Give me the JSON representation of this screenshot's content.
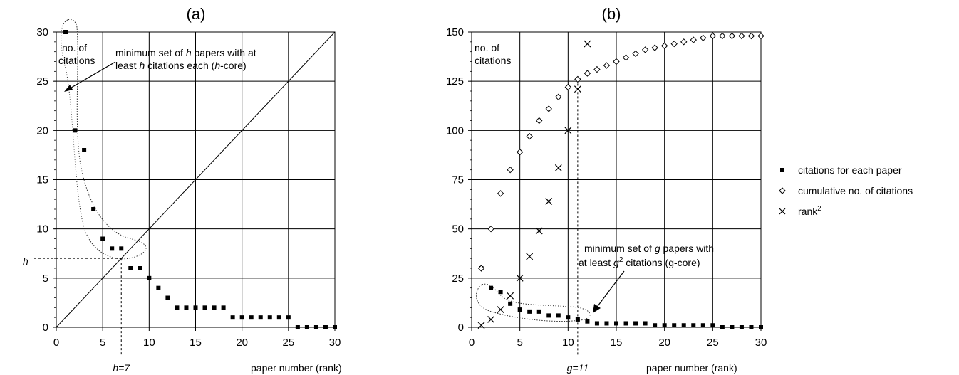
{
  "chart_data": [
    {
      "panel": "a",
      "type": "scatter",
      "title": "(a)",
      "ylabel_lines": [
        "no. of",
        "citations"
      ],
      "xlabel": "paper number (rank)",
      "xlim": [
        0,
        30
      ],
      "ylim": [
        0,
        30
      ],
      "xticks": [
        0,
        5,
        10,
        15,
        20,
        25,
        30
      ],
      "yticks": [
        0,
        5,
        10,
        15,
        20,
        25,
        30
      ],
      "grid": true,
      "series": [
        {
          "name": "citations for each paper",
          "marker": "filled-square",
          "x": [
            1,
            2,
            3,
            4,
            5,
            6,
            7,
            8,
            9,
            10,
            11,
            12,
            13,
            14,
            15,
            16,
            17,
            18,
            19,
            20,
            21,
            22,
            23,
            24,
            25,
            26,
            27,
            28,
            29,
            30
          ],
          "y": [
            30,
            20,
            18,
            12,
            9,
            8,
            8,
            6,
            6,
            5,
            4,
            3,
            2,
            2,
            2,
            2,
            2,
            2,
            1,
            1,
            1,
            1,
            1,
            1,
            1,
            0,
            0,
            0,
            0,
            0
          ]
        },
        {
          "name": "",
          "marker": "line",
          "x": [
            0,
            30
          ],
          "y": [
            0,
            30
          ]
        }
      ],
      "annotations": {
        "h_label": "h",
        "h_value_label": "h=7",
        "h_value": 7,
        "core_text_line1": [
          "minimum set of ",
          "h",
          " papers with at"
        ],
        "core_text_line2": [
          "least ",
          "h",
          " citations each (",
          "h",
          "-core)"
        ]
      }
    },
    {
      "panel": "b",
      "type": "scatter",
      "title": "(b)",
      "ylabel_lines": [
        "no. of",
        "citations"
      ],
      "xlabel": "paper number (rank)",
      "xlim": [
        0,
        30
      ],
      "ylim": [
        0,
        150
      ],
      "xticks": [
        0,
        5,
        10,
        15,
        20,
        25,
        30
      ],
      "yticks": [
        0,
        25,
        50,
        75,
        100,
        125,
        150
      ],
      "grid": true,
      "series": [
        {
          "name": "citations for each paper",
          "marker": "filled-square",
          "x": [
            1,
            2,
            3,
            4,
            5,
            6,
            7,
            8,
            9,
            10,
            11,
            12,
            13,
            14,
            15,
            16,
            17,
            18,
            19,
            20,
            21,
            22,
            23,
            24,
            25,
            26,
            27,
            28,
            29,
            30
          ],
          "y": [
            30,
            20,
            18,
            12,
            9,
            8,
            8,
            6,
            6,
            5,
            4,
            3,
            2,
            2,
            2,
            2,
            2,
            2,
            1,
            1,
            1,
            1,
            1,
            1,
            1,
            0,
            0,
            0,
            0,
            0
          ]
        },
        {
          "name": "cumulative no. of citations",
          "marker": "open-diamond",
          "x": [
            1,
            2,
            3,
            4,
            5,
            6,
            7,
            8,
            9,
            10,
            11,
            12,
            13,
            14,
            15,
            16,
            17,
            18,
            19,
            20,
            21,
            22,
            23,
            24,
            25,
            26,
            27,
            28,
            29,
            30
          ],
          "y": [
            30,
            50,
            68,
            80,
            89,
            97,
            105,
            111,
            117,
            122,
            126,
            129,
            131,
            133,
            135,
            137,
            139,
            141,
            142,
            143,
            144,
            145,
            146,
            147,
            148,
            148,
            148,
            148,
            148,
            148
          ]
        },
        {
          "name": "rank",
          "name_sup": "2",
          "marker": "cross",
          "x": [
            1,
            2,
            3,
            4,
            5,
            6,
            7,
            8,
            9,
            10,
            11,
            12
          ],
          "y": [
            1,
            4,
            9,
            16,
            25,
            36,
            49,
            64,
            81,
            100,
            121,
            144
          ]
        }
      ],
      "annotations": {
        "g_value_label": "g=11",
        "g_value": 11,
        "core_text_line1": [
          "minimum set of ",
          "g",
          " papers with"
        ],
        "core_text_line2": [
          "at least ",
          "g",
          "2",
          " citations (g-core)"
        ]
      }
    }
  ],
  "legend": {
    "placement": "right",
    "items": [
      {
        "label": "citations for each paper",
        "sup": "",
        "marker": "filled-square"
      },
      {
        "label": "cumulative no. of citations",
        "sup": "",
        "marker": "open-diamond"
      },
      {
        "label": "rank",
        "sup": "2",
        "marker": "cross"
      }
    ]
  }
}
